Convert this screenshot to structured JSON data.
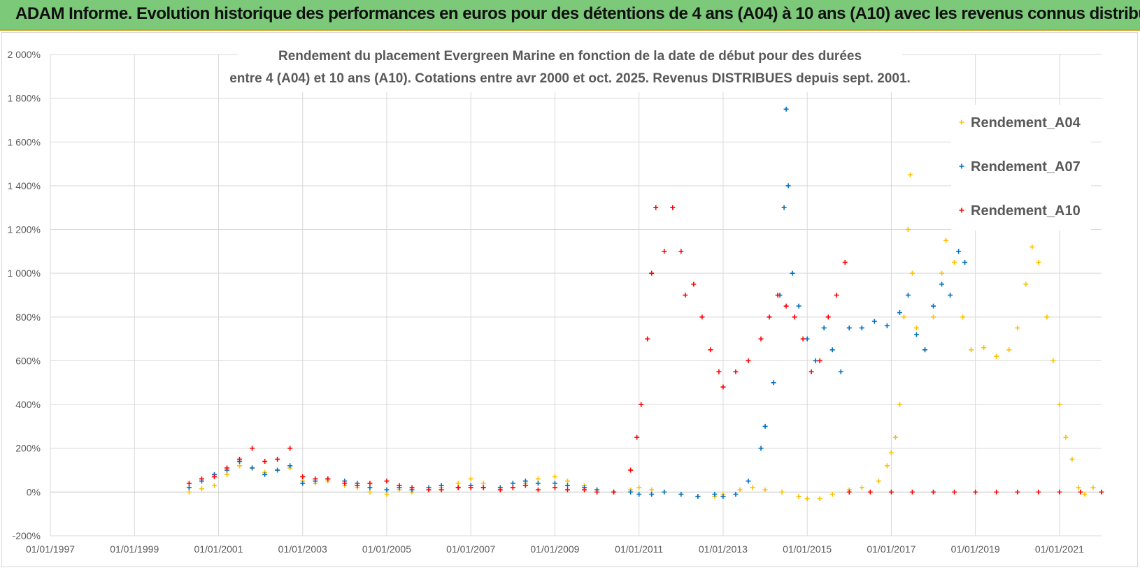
{
  "banner": {
    "text": "ADAM Informe. Evolution historique des performances en euros pour des détentions de 4 ans (A04) à 10 ans (A10) avec les revenus connus distribués"
  },
  "chart_data": {
    "type": "scatter",
    "title_lines": [
      "Rendement du placement Evergreen Marine  en fonction de la date de début pour des durées",
      "entre 4 (A04) et 10 ans (A10). Cotations entre avr 2000 et oct. 2025. Revenus DISTRIBUES depuis sept. 2001."
    ],
    "xlabel": "",
    "ylabel": "",
    "x_unit": "year",
    "xlim": [
      1997.0,
      2022.0
    ],
    "ylim": [
      -200,
      2000
    ],
    "y_ticks": [
      -200,
      0,
      200,
      400,
      600,
      800,
      1000,
      1200,
      1400,
      1600,
      1800,
      2000
    ],
    "y_tick_labels": [
      "-200%",
      "0%",
      "200%",
      "400%",
      "600%",
      "800%",
      "1 000%",
      "1 200%",
      "1 400%",
      "1 600%",
      "1 800%",
      "2 000%"
    ],
    "x_ticks": [
      1997,
      1999,
      2001,
      2003,
      2005,
      2007,
      2009,
      2011,
      2013,
      2015,
      2017,
      2019,
      2021
    ],
    "x_tick_labels": [
      "01/01/1997",
      "01/01/1999",
      "01/01/2001",
      "01/01/2003",
      "01/01/2005",
      "01/01/2007",
      "01/01/2009",
      "01/01/2011",
      "01/01/2013",
      "01/01/2015",
      "01/01/2017",
      "01/01/2019",
      "01/01/2021"
    ],
    "grid": true,
    "legend_position": "top-right",
    "marker": "+",
    "series": [
      {
        "name": "Rendement_A04",
        "color": "#ffc000",
        "points": [
          [
            2000.3,
            0
          ],
          [
            2000.6,
            15
          ],
          [
            2000.9,
            30
          ],
          [
            2001.2,
            80
          ],
          [
            2001.5,
            120
          ],
          [
            2001.8,
            110
          ],
          [
            2002.1,
            90
          ],
          [
            2002.4,
            100
          ],
          [
            2002.7,
            110
          ],
          [
            2003.0,
            50
          ],
          [
            2003.3,
            40
          ],
          [
            2003.6,
            50
          ],
          [
            2004.0,
            30
          ],
          [
            2004.3,
            20
          ],
          [
            2004.6,
            0
          ],
          [
            2005.0,
            -10
          ],
          [
            2005.3,
            10
          ],
          [
            2005.6,
            0
          ],
          [
            2006.0,
            10
          ],
          [
            2006.3,
            20
          ],
          [
            2006.7,
            40
          ],
          [
            2007.0,
            60
          ],
          [
            2007.3,
            40
          ],
          [
            2007.7,
            10
          ],
          [
            2008.0,
            20
          ],
          [
            2008.3,
            40
          ],
          [
            2008.6,
            60
          ],
          [
            2009.0,
            70
          ],
          [
            2009.3,
            50
          ],
          [
            2009.7,
            30
          ],
          [
            2010.0,
            10
          ],
          [
            2010.4,
            0
          ],
          [
            2010.8,
            10
          ],
          [
            2011.0,
            20
          ],
          [
            2011.3,
            10
          ],
          [
            2011.6,
            0
          ],
          [
            2012.0,
            -10
          ],
          [
            2012.4,
            -20
          ],
          [
            2012.8,
            -20
          ],
          [
            2013.0,
            -10
          ],
          [
            2013.4,
            10
          ],
          [
            2013.7,
            20
          ],
          [
            2014.0,
            10
          ],
          [
            2014.4,
            0
          ],
          [
            2014.8,
            -20
          ],
          [
            2015.0,
            -30
          ],
          [
            2015.3,
            -30
          ],
          [
            2015.6,
            -10
          ],
          [
            2016.0,
            10
          ],
          [
            2016.3,
            20
          ],
          [
            2016.7,
            50
          ],
          [
            2016.9,
            120
          ],
          [
            2017.0,
            180
          ],
          [
            2017.1,
            250
          ],
          [
            2017.2,
            400
          ],
          [
            2017.3,
            800
          ],
          [
            2017.4,
            1200
          ],
          [
            2017.45,
            1450
          ],
          [
            2017.5,
            1000
          ],
          [
            2017.6,
            750
          ],
          [
            2017.8,
            650
          ],
          [
            2018.0,
            800
          ],
          [
            2018.2,
            1000
          ],
          [
            2018.3,
            1150
          ],
          [
            2018.5,
            1050
          ],
          [
            2018.7,
            800
          ],
          [
            2018.9,
            650
          ],
          [
            2019.2,
            660
          ],
          [
            2019.5,
            620
          ],
          [
            2019.8,
            650
          ],
          [
            2020.0,
            750
          ],
          [
            2020.2,
            950
          ],
          [
            2020.35,
            1120
          ],
          [
            2020.5,
            1050
          ],
          [
            2020.7,
            800
          ],
          [
            2020.85,
            600
          ],
          [
            2021.0,
            400
          ],
          [
            2021.15,
            250
          ],
          [
            2021.3,
            150
          ],
          [
            2021.45,
            20
          ],
          [
            2021.6,
            -10
          ],
          [
            2021.8,
            20
          ],
          [
            2022.0,
            0
          ]
        ]
      },
      {
        "name": "Rendement_A07",
        "color": "#0070c0",
        "points": [
          [
            2000.3,
            20
          ],
          [
            2000.6,
            50
          ],
          [
            2000.9,
            80
          ],
          [
            2001.2,
            100
          ],
          [
            2001.5,
            140
          ],
          [
            2001.8,
            110
          ],
          [
            2002.1,
            80
          ],
          [
            2002.4,
            100
          ],
          [
            2002.7,
            120
          ],
          [
            2003.0,
            40
          ],
          [
            2003.3,
            50
          ],
          [
            2003.6,
            60
          ],
          [
            2004.0,
            50
          ],
          [
            2004.3,
            40
          ],
          [
            2004.6,
            20
          ],
          [
            2005.0,
            10
          ],
          [
            2005.3,
            20
          ],
          [
            2005.6,
            10
          ],
          [
            2006.0,
            20
          ],
          [
            2006.3,
            30
          ],
          [
            2006.7,
            20
          ],
          [
            2007.0,
            30
          ],
          [
            2007.3,
            20
          ],
          [
            2007.7,
            20
          ],
          [
            2008.0,
            40
          ],
          [
            2008.3,
            50
          ],
          [
            2008.6,
            40
          ],
          [
            2009.0,
            40
          ],
          [
            2009.3,
            30
          ],
          [
            2009.7,
            20
          ],
          [
            2010.0,
            10
          ],
          [
            2010.4,
            0
          ],
          [
            2010.8,
            0
          ],
          [
            2011.0,
            -10
          ],
          [
            2011.3,
            -10
          ],
          [
            2011.6,
            0
          ],
          [
            2012.0,
            -10
          ],
          [
            2012.4,
            -20
          ],
          [
            2012.8,
            -10
          ],
          [
            2013.0,
            -20
          ],
          [
            2013.3,
            -10
          ],
          [
            2013.6,
            50
          ],
          [
            2013.9,
            200
          ],
          [
            2014.0,
            300
          ],
          [
            2014.2,
            500
          ],
          [
            2014.35,
            900
          ],
          [
            2014.45,
            1300
          ],
          [
            2014.5,
            1750
          ],
          [
            2014.55,
            1400
          ],
          [
            2014.65,
            1000
          ],
          [
            2014.8,
            850
          ],
          [
            2015.0,
            700
          ],
          [
            2015.2,
            600
          ],
          [
            2015.4,
            750
          ],
          [
            2015.6,
            650
          ],
          [
            2015.8,
            550
          ],
          [
            2016.0,
            750
          ],
          [
            2016.3,
            750
          ],
          [
            2016.6,
            780
          ],
          [
            2016.9,
            760
          ],
          [
            2017.2,
            820
          ],
          [
            2017.4,
            900
          ],
          [
            2017.6,
            720
          ],
          [
            2017.8,
            650
          ],
          [
            2018.0,
            850
          ],
          [
            2018.2,
            950
          ],
          [
            2018.4,
            900
          ],
          [
            2018.6,
            1100
          ],
          [
            2018.75,
            1050
          ]
        ]
      },
      {
        "name": "Rendement_A10",
        "color": "#ff0000",
        "points": [
          [
            2000.3,
            40
          ],
          [
            2000.6,
            60
          ],
          [
            2000.9,
            70
          ],
          [
            2001.2,
            110
          ],
          [
            2001.5,
            150
          ],
          [
            2001.8,
            200
          ],
          [
            2002.1,
            140
          ],
          [
            2002.4,
            150
          ],
          [
            2002.7,
            200
          ],
          [
            2003.0,
            70
          ],
          [
            2003.3,
            60
          ],
          [
            2003.6,
            60
          ],
          [
            2004.0,
            40
          ],
          [
            2004.3,
            30
          ],
          [
            2004.6,
            40
          ],
          [
            2005.0,
            50
          ],
          [
            2005.3,
            30
          ],
          [
            2005.6,
            20
          ],
          [
            2006.0,
            10
          ],
          [
            2006.3,
            10
          ],
          [
            2006.7,
            20
          ],
          [
            2007.0,
            20
          ],
          [
            2007.3,
            20
          ],
          [
            2007.7,
            10
          ],
          [
            2008.0,
            20
          ],
          [
            2008.3,
            30
          ],
          [
            2008.6,
            10
          ],
          [
            2009.0,
            20
          ],
          [
            2009.3,
            10
          ],
          [
            2009.7,
            10
          ],
          [
            2010.0,
            0
          ],
          [
            2010.4,
            0
          ],
          [
            2010.8,
            100
          ],
          [
            2010.95,
            250
          ],
          [
            2011.05,
            400
          ],
          [
            2011.2,
            700
          ],
          [
            2011.3,
            1000
          ],
          [
            2011.4,
            1300
          ],
          [
            2011.6,
            1100
          ],
          [
            2011.8,
            1300
          ],
          [
            2012.0,
            1100
          ],
          [
            2012.1,
            900
          ],
          [
            2012.3,
            950
          ],
          [
            2012.5,
            800
          ],
          [
            2012.7,
            650
          ],
          [
            2012.9,
            550
          ],
          [
            2013.0,
            480
          ],
          [
            2013.3,
            550
          ],
          [
            2013.6,
            600
          ],
          [
            2013.9,
            700
          ],
          [
            2014.1,
            800
          ],
          [
            2014.3,
            900
          ],
          [
            2014.5,
            850
          ],
          [
            2014.7,
            800
          ],
          [
            2014.9,
            700
          ],
          [
            2015.1,
            550
          ],
          [
            2015.3,
            600
          ],
          [
            2015.5,
            800
          ],
          [
            2015.7,
            900
          ],
          [
            2015.9,
            1050
          ],
          [
            2016.0,
            0
          ],
          [
            2016.5,
            0
          ],
          [
            2017.0,
            0
          ],
          [
            2017.5,
            0
          ],
          [
            2018.0,
            0
          ],
          [
            2018.5,
            0
          ],
          [
            2019.0,
            0
          ],
          [
            2019.5,
            0
          ],
          [
            2020.0,
            0
          ],
          [
            2020.5,
            0
          ],
          [
            2021.0,
            0
          ],
          [
            2021.5,
            0
          ],
          [
            2022.0,
            0
          ]
        ]
      }
    ]
  }
}
